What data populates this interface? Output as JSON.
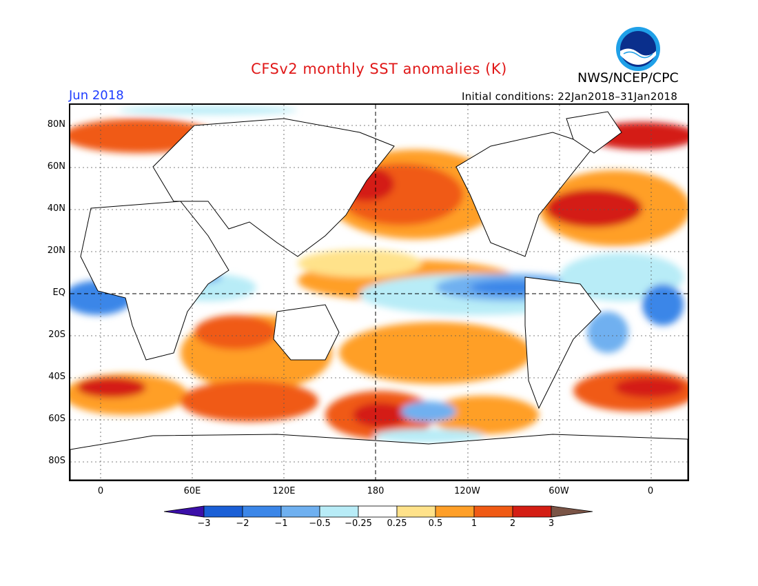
{
  "title": "CFSv2 monthly SST anomalies (K)",
  "agency": "NWS/NCEP/CPC",
  "month": "Jun 2018",
  "initial_conditions": "Initial conditions: 22Jan2018–31Jan2018",
  "logo": {
    "text": "NOAA",
    "colors": {
      "outer": "#1fa0e8",
      "inner": "#0a2f8c"
    }
  },
  "map": {
    "lat_labels": [
      "80N",
      "60N",
      "40N",
      "20N",
      "EQ",
      "20S",
      "40S",
      "60S",
      "80S"
    ],
    "lon_labels": [
      "0",
      "60E",
      "120E",
      "180",
      "120W",
      "60W",
      "0"
    ],
    "colors": {
      "land": "#ffffff",
      "coast": "#000000",
      "grid": "#555555"
    }
  },
  "colorbar": {
    "labels": [
      "−3",
      "−2",
      "−1",
      "−0.5",
      "−0.25",
      "0.25",
      "0.5",
      "1",
      "2",
      "3"
    ],
    "colors": [
      "#3b0fa8",
      "#1a5fd6",
      "#3b86e8",
      "#6fb0f0",
      "#b8ecf7",
      "#ffffff",
      "#ffe28a",
      "#ff9f28",
      "#f05a14",
      "#d41e14",
      "#a01010",
      "#7a5446"
    ]
  }
}
